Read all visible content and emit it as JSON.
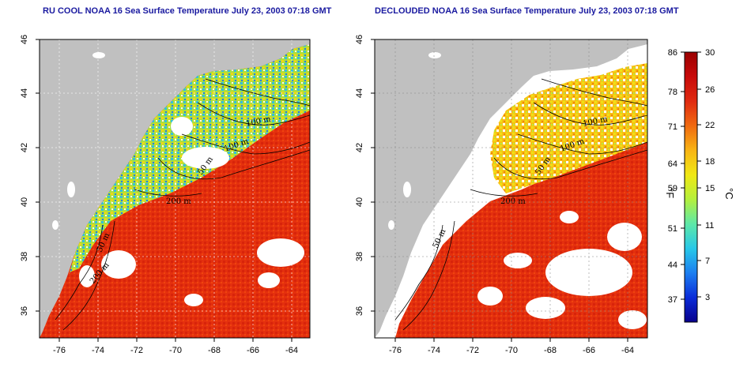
{
  "panels": [
    {
      "id": "rucool",
      "title": "RU COOL NOAA 16 Sea Surface Temperature July 23, 2003 07:18 GMT",
      "contour_labels": [
        "100 m",
        "100 m",
        "50 m",
        "200 m",
        "50 m",
        "200 m"
      ]
    },
    {
      "id": "declouded",
      "title": "DECLOUDED NOAA 16 Sea Surface Temperature July 23, 2003 07:18 GMT",
      "contour_labels": [
        "100 m",
        "100 m",
        "50 m",
        "200 m",
        "50 m"
      ]
    }
  ],
  "axes": {
    "lon_ticks": [
      "-76",
      "-74",
      "-72",
      "-70",
      "-68",
      "-66",
      "-64"
    ],
    "lat_ticks": [
      "46",
      "44",
      "42",
      "40",
      "38",
      "36"
    ]
  },
  "colorbar": {
    "f_unit": "°F",
    "c_unit": "°C",
    "f_ticks": [
      "86",
      "78",
      "71",
      "64",
      "59",
      "51",
      "44",
      "37"
    ],
    "c_ticks": [
      "30",
      "26",
      "22",
      "18",
      "15",
      "11",
      "7",
      "3"
    ],
    "colors": [
      "#08008c",
      "#0a2cd8",
      "#1c7ef0",
      "#28c8e8",
      "#5ee8a8",
      "#b4f03c",
      "#f0e814",
      "#f8b414",
      "#f06a10",
      "#e02a10",
      "#c80a0a",
      "#9a0000"
    ]
  },
  "colors": {
    "land": "#c0c0c0",
    "ocean_warm": "#e8320c",
    "ocean_hot": "#d8220a",
    "title": "#1a1aa0"
  }
}
